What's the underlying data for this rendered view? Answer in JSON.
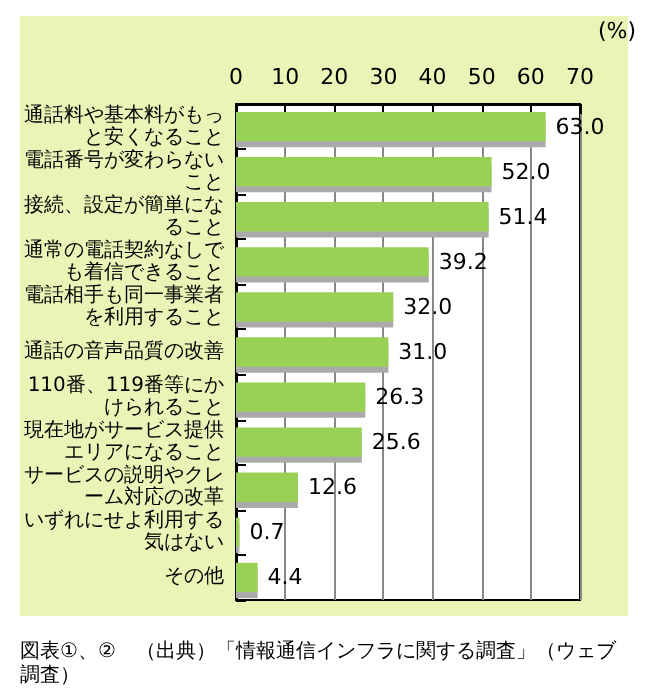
{
  "chart_data": {
    "type": "bar",
    "orientation": "horizontal",
    "xlabel": "(%)",
    "categories": [
      "通話料や基本料がもっと安くなること",
      "電話番号が変わらないこと",
      "接続、設定が簡単になること",
      "通常の電話契約なしでも着信できること",
      "電話相手も同一事業者を利用すること",
      "通話の音声品質の改善",
      "110番、119番等にかけられること",
      "現在地がサービス提供エリアになること",
      "サービスの説明やクレーム対応の改革",
      "いずれにせよ利用する気はない",
      "その他"
    ],
    "values": [
      63.0,
      52.0,
      51.4,
      39.2,
      32.0,
      31.0,
      26.3,
      25.6,
      12.6,
      0.7,
      4.4
    ],
    "value_labels": [
      "63.0",
      "52.0",
      "51.4",
      "39.2",
      "32.0",
      "31.0",
      "26.3",
      "25.6",
      "12.6",
      "0.7",
      "4.4"
    ],
    "color": "#99d155",
    "xlim": [
      0,
      70
    ],
    "xticks": [
      0,
      10,
      20,
      30,
      40,
      50,
      60,
      70
    ],
    "grid": "x",
    "annotations": [
      "図表①、②　（出典）「情報通信インフラに関する調査」（ウェブ調査）"
    ]
  }
}
